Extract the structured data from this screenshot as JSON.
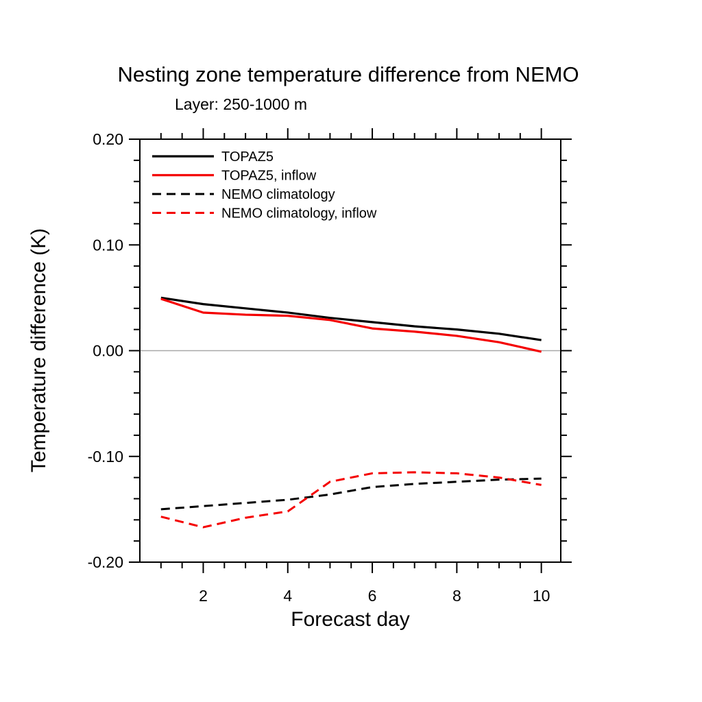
{
  "page": {
    "background": "#ffffff",
    "text_color": "#000000"
  },
  "chart_data": {
    "type": "line",
    "title": "Nesting zone temperature difference from NEMO",
    "subtitle": "Layer: 250-1000 m",
    "xlabel": "Forecast day",
    "ylabel": "Temperature difference (K)",
    "x": [
      1,
      2,
      3,
      4,
      5,
      6,
      7,
      8,
      9,
      10
    ],
    "series": [
      {
        "name": "TOPAZ5",
        "color": "#000000",
        "style": "solid",
        "values": [
          0.05,
          0.044,
          0.04,
          0.036,
          0.031,
          0.027,
          0.023,
          0.02,
          0.016,
          0.01
        ]
      },
      {
        "name": "TOPAZ5, inflow",
        "color": "#f40000",
        "style": "solid",
        "values": [
          0.049,
          0.036,
          0.034,
          0.033,
          0.029,
          0.021,
          0.018,
          0.014,
          0.008,
          -0.001
        ]
      },
      {
        "name": "NEMO climatology",
        "color": "#000000",
        "style": "dashed",
        "values": [
          -0.15,
          -0.147,
          -0.144,
          -0.141,
          -0.136,
          -0.129,
          -0.126,
          -0.124,
          -0.122,
          -0.121
        ]
      },
      {
        "name": "NEMO climatology, inflow",
        "color": "#f40000",
        "style": "dashed",
        "values": [
          -0.157,
          -0.167,
          -0.158,
          -0.152,
          -0.124,
          -0.116,
          -0.115,
          -0.116,
          -0.12,
          -0.127
        ]
      }
    ],
    "xlim": [
      0.5,
      10.46
    ],
    "ylim": [
      -0.2,
      0.2
    ],
    "x_major_ticks": [
      2,
      4,
      6,
      8,
      10
    ],
    "x_tick_labels": [
      "2",
      "4",
      "6",
      "8",
      "10"
    ],
    "x_minor_start": 1.0,
    "x_minor_end": 10.0,
    "x_minor_step": 0.5,
    "y_major_ticks": [
      0.2,
      0.1,
      0.0,
      -0.1,
      -0.2
    ],
    "y_tick_labels": [
      "0.20",
      "0.10",
      "0.00",
      "-0.10",
      "-0.20"
    ],
    "y_minor_step": 0.02,
    "grid": false,
    "zero_line": true,
    "zero_line_color": "#a8a8a8",
    "axis_color": "#000000",
    "legend_position": "top-left-inside",
    "legend_entries": [
      "TOPAZ5",
      "TOPAZ5, inflow",
      "NEMO climatology",
      "NEMO climatology, inflow"
    ]
  }
}
